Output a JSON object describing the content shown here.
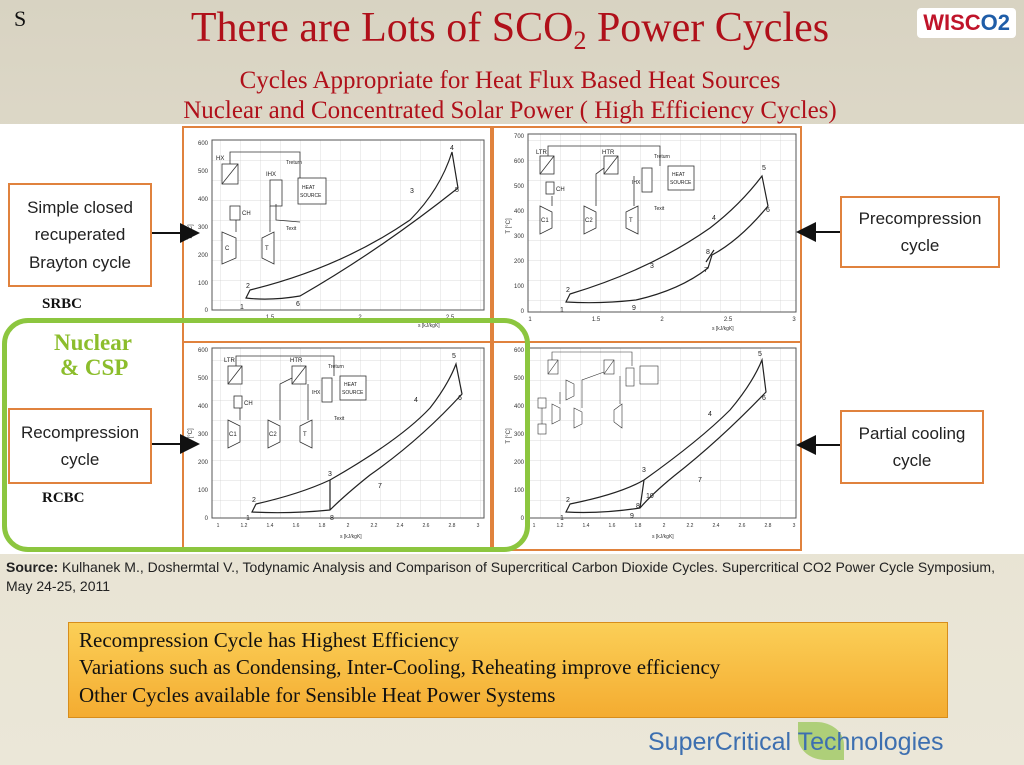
{
  "slide_number": "S",
  "title": {
    "main": "There are Lots of SCO",
    "sub": "2",
    "tail": " Power Cycles"
  },
  "subtitle_1": "Cycles Appropriate for Heat Flux Based Heat Sources",
  "subtitle_2": "Nuclear and Concentrated Solar Power ( High Efficiency Cycles)",
  "logo": {
    "left": "WISC",
    "right": "O2"
  },
  "cycles": {
    "srbc": {
      "line1": "Simple closed",
      "line2": "recuperated",
      "line3": "Brayton cycle",
      "abbr": "SRBC"
    },
    "precompression": {
      "line1": "Precompression",
      "line2": "cycle"
    },
    "recompression": {
      "line1": "Recompression",
      "line2": "cycle",
      "abbr": "RCBC"
    },
    "partial_cooling": {
      "line1": "Partial cooling",
      "line2": "cycle"
    }
  },
  "highlight": {
    "line1": "Nuclear",
    "line2": "& CSP"
  },
  "plots": {
    "y_axis_label": "T [°C]",
    "x_axis_label": "s [kJ/kgK]",
    "schematic": {
      "hx": "HX",
      "ihx": "IHX",
      "ltr": "LTR",
      "htr": "HTR",
      "ch": "CH",
      "c": "C",
      "c1": "C1",
      "c2": "C2",
      "t": "T",
      "treturn": "Treturn",
      "texit": "Texit",
      "heat": "HEAT",
      "source": "SOURCE"
    },
    "srbc_ticks_y": [
      "600",
      "500",
      "400",
      "300",
      "200",
      "100",
      "0"
    ],
    "srbc_ticks_x": [
      "1.5",
      "2",
      "2.5"
    ],
    "pre_ticks_y": [
      "700",
      "600",
      "500",
      "400",
      "300",
      "200",
      "100",
      "0"
    ],
    "pre_ticks_x": [
      "1",
      "1.5",
      "2",
      "2.5",
      "3"
    ],
    "rc_ticks_y": [
      "600",
      "500",
      "400",
      "300",
      "200",
      "100",
      "0"
    ],
    "rc_ticks_x": [
      "1",
      "1.2",
      "1.4",
      "1.6",
      "1.8",
      "2",
      "2.2",
      "2.4",
      "2.6",
      "2.8",
      "3"
    ],
    "pc_ticks_y": [
      "600",
      "500",
      "400",
      "300",
      "200",
      "100",
      "0"
    ],
    "pc_ticks_x": [
      "1",
      "1.2",
      "1.4",
      "1.6",
      "1.8",
      "2",
      "2.2",
      "2.4",
      "2.6",
      "2.8",
      "3"
    ],
    "srbc_points": [
      "1",
      "2",
      "3",
      "4",
      "5",
      "6"
    ],
    "pre_points": [
      "1",
      "2",
      "3",
      "4",
      "5",
      "6",
      "7",
      "8",
      "9"
    ],
    "rc_points": [
      "1",
      "2",
      "3",
      "4",
      "5",
      "6",
      "7",
      "8"
    ],
    "pc_points": [
      "1",
      "2",
      "3",
      "4",
      "5",
      "6",
      "7",
      "8",
      "9",
      "10"
    ]
  },
  "source": {
    "bold": "Source:",
    "text": " Kulhanek M., Doshermtal V., Todynamic Analysis and Comparison of Supercritical Carbon Dioxide Cycles. Supercritical CO2 Power Cycle Symposium, May 24-25, 2011"
  },
  "callout": {
    "line1": "Recompression Cycle has Highest Efficiency",
    "line2": "Variations such as Condensing, Inter-Cooling, Reheating improve efficiency",
    "line3": "Other Cycles available for Sensible Heat Power Systems"
  },
  "brand": "SuperCritical Technologies",
  "colors": {
    "title_red": "#b0101a",
    "orange_frame": "#e0823d",
    "green_highlight": "#8cc63f",
    "callout_bg": "#f9c04a",
    "brand_blue": "#3d6fb0"
  }
}
